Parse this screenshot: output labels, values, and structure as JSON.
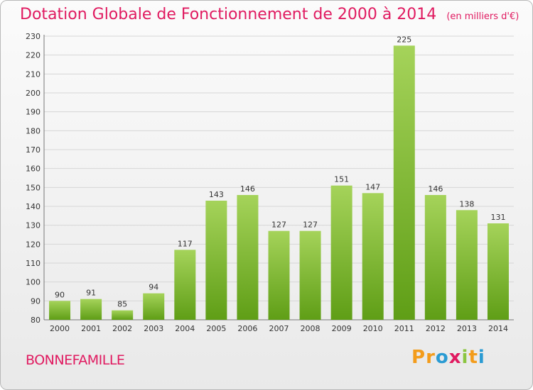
{
  "header": {
    "title": "Dotation Globale de Fonctionnement de 2000 à 2014",
    "unit": "(en milliers d'€)"
  },
  "footer": {
    "commune": "BONNEFAMILLE",
    "logo_text": "Proxiti",
    "logo_colors": [
      "#f39c1b",
      "#f39c1b",
      "#2a9bd3",
      "#e01a60",
      "#8bc540",
      "#f39c1b",
      "#2a9bd3"
    ]
  },
  "colors": {
    "title": "#e01a60",
    "bar_light": "#a5d35a",
    "bar_dark": "#5f9e16",
    "grid": "#d6d6d6"
  },
  "chart_data": {
    "type": "bar",
    "title": "Dotation Globale de Fonctionnement de 2000 à 2014",
    "subtitle": "(en milliers d'€)",
    "xlabel": "",
    "ylabel": "",
    "categories": [
      "2000",
      "2001",
      "2002",
      "2003",
      "2004",
      "2005",
      "2006",
      "2007",
      "2008",
      "2009",
      "2010",
      "2011",
      "2012",
      "2013",
      "2014"
    ],
    "values": [
      90,
      91,
      85,
      94,
      117,
      143,
      146,
      127,
      127,
      151,
      147,
      225,
      146,
      138,
      131
    ],
    "ylim": [
      80,
      230
    ],
    "yticks": [
      80,
      90,
      100,
      110,
      120,
      130,
      140,
      150,
      160,
      170,
      180,
      190,
      200,
      210,
      220,
      230
    ],
    "grid": true,
    "legend": "none"
  }
}
